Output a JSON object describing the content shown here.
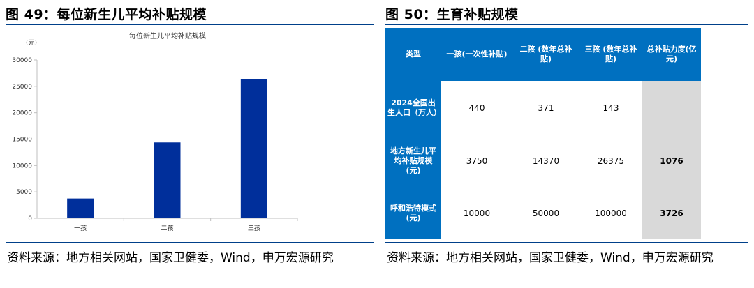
{
  "left": {
    "figure_title": "图 49：每位新生儿平均补贴规模",
    "source": "资料来源：地方相关网站，国家卫健委，Wind，申万宏源研究"
  },
  "right": {
    "figure_title": "图 50：生育补贴规模",
    "source": "资料来源：地方相关网站，国家卫健委，Wind，申万宏源研究",
    "table": {
      "headers": [
        "类型",
        "一孩(一次性补贴)",
        "二孩 (数年总补贴)",
        "三孩 (数年总补贴)",
        "总补贴力度(亿元)"
      ],
      "rows": [
        {
          "label": "2024全国出生人口（万人）",
          "values": [
            "440",
            "371",
            "143"
          ],
          "total": ""
        },
        {
          "label": "地方新生儿平均补贴规模(元)",
          "values": [
            "3750",
            "14370",
            "26375"
          ],
          "total": "1076"
        },
        {
          "label": "呼和浩特模式(元)",
          "values": [
            "10000",
            "50000",
            "100000"
          ],
          "total": "3726"
        }
      ]
    }
  },
  "chart_data": {
    "type": "bar",
    "title": "每位新生儿平均补贴规模",
    "ylabel": "(元)",
    "xlabel": "",
    "categories": [
      "一孩",
      "二孩",
      "三孩"
    ],
    "values": [
      3750,
      14370,
      26375
    ],
    "ylim": [
      0,
      30000
    ],
    "yticks": [
      0,
      5000,
      10000,
      15000,
      20000,
      25000,
      30000
    ],
    "grid": false,
    "bar_color": "#002f9b"
  },
  "colors": {
    "accent": "#00408a",
    "header_blue": "#0070c0",
    "total_gray": "#d9d9d9"
  }
}
